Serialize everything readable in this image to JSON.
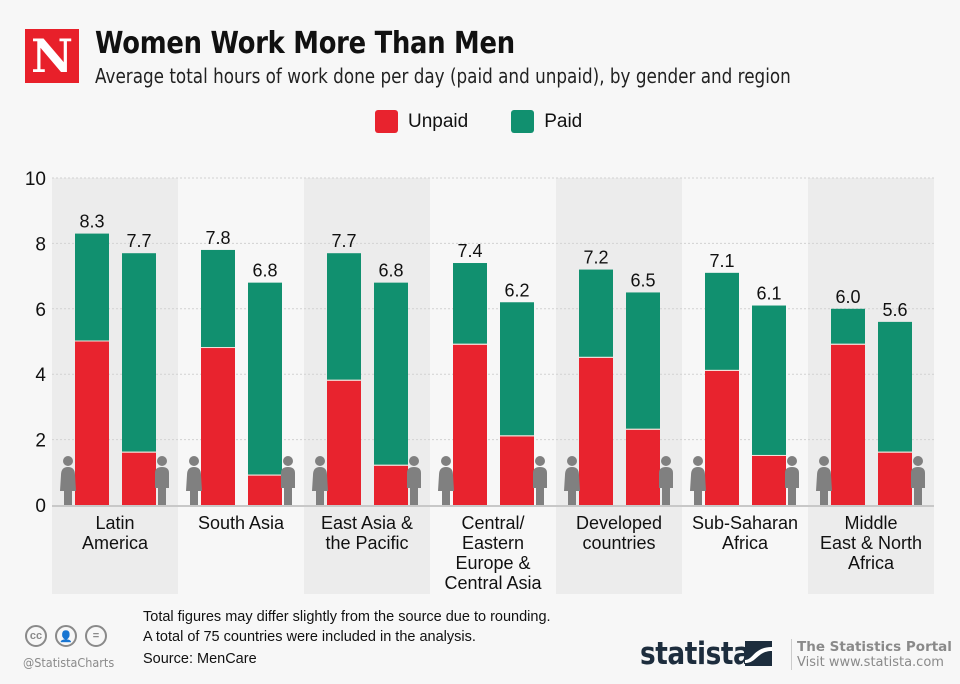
{
  "header": {
    "logo_letter": "N",
    "title": "Women Work More Than Men",
    "subtitle": "Average total hours of work done per day (paid and unpaid), by gender and region"
  },
  "legend": [
    {
      "label": "Unpaid",
      "color": "#e8232e"
    },
    {
      "label": "Paid",
      "color": "#11906f"
    }
  ],
  "chart_data": {
    "type": "bar",
    "stacked": true,
    "title": "Women Work More Than Men",
    "subtitle": "Average total hours of work done per day (paid and unpaid), by gender and region",
    "xlabel": "",
    "ylabel": "",
    "ylim": [
      0,
      10
    ],
    "yticks": [
      0,
      2,
      4,
      6,
      8,
      10
    ],
    "grid": true,
    "legend_position": "top-center",
    "categories": [
      [
        "Latin",
        "America"
      ],
      [
        "South Asia"
      ],
      [
        "East Asia &",
        "the Pacific"
      ],
      [
        "Central/",
        "Eastern",
        "Europe &",
        "Central Asia"
      ],
      [
        "Developed",
        "countries"
      ],
      [
        "Sub-Saharan",
        "Africa"
      ],
      [
        "Middle",
        "East & North",
        "Africa"
      ]
    ],
    "groups": [
      "Women",
      "Men"
    ],
    "series": [
      {
        "name": "Unpaid",
        "color": "#e8232e",
        "women": [
          5.0,
          4.8,
          3.8,
          4.9,
          4.5,
          4.1,
          4.9
        ],
        "men": [
          1.6,
          0.9,
          1.2,
          2.1,
          2.3,
          1.5,
          1.6
        ]
      },
      {
        "name": "Paid",
        "color": "#11906f",
        "women": [
          3.3,
          3.0,
          3.9,
          2.5,
          2.7,
          3.0,
          1.1
        ],
        "men": [
          6.1,
          5.9,
          5.6,
          4.1,
          4.2,
          4.6,
          4.0
        ]
      }
    ],
    "totals": {
      "women": [
        "8.3",
        "7.8",
        "7.7",
        "7.4",
        "7.2",
        "7.1",
        "6.0"
      ],
      "men": [
        "7.7",
        "6.8",
        "6.8",
        "6.2",
        "6.5",
        "6.1",
        "5.6"
      ]
    }
  },
  "footer": {
    "note_line1": "Total figures may differ slightly from the source due to rounding.",
    "note_line2": "A total of 75 countries were included in the analysis.",
    "source": "Source: MenCare",
    "handle": "@StatistaCharts",
    "license_icons": [
      "cc",
      "by",
      "nd"
    ],
    "brand": "statista",
    "portal_title": "The Statistics Portal",
    "portal_url": "Visit www.statista.com"
  }
}
